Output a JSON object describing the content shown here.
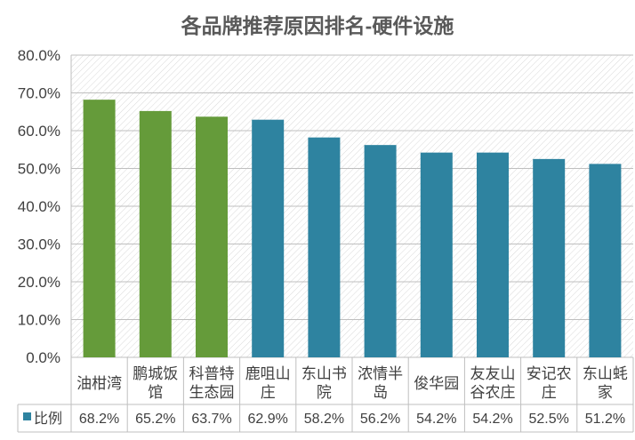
{
  "chart_data": {
    "type": "bar",
    "title": "各品牌推荐原因排名-硬件设施",
    "categories": [
      "油柑湾",
      "鹏城饭馆",
      "科普特生态园",
      "鹿咀山庄",
      "东山书院",
      "浓情半岛",
      "俊华园",
      "友友山谷农庄",
      "安记农庄",
      "东山蚝家"
    ],
    "category_lines": [
      [
        "油柑湾"
      ],
      [
        "鹏城饭",
        "馆"
      ],
      [
        "科普特",
        "生态园"
      ],
      [
        "鹿咀山",
        "庄"
      ],
      [
        "东山书",
        "院"
      ],
      [
        "浓情半",
        "岛"
      ],
      [
        "俊华园"
      ],
      [
        "友友山",
        "谷农庄"
      ],
      [
        "安记农",
        "庄"
      ],
      [
        "东山蚝",
        "家"
      ]
    ],
    "series": [
      {
        "name": "比例",
        "values": [
          68.2,
          65.2,
          63.7,
          62.9,
          58.2,
          56.2,
          54.2,
          54.2,
          52.5,
          51.2
        ]
      }
    ],
    "value_labels": [
      "68.2%",
      "65.2%",
      "63.7%",
      "62.9%",
      "58.2%",
      "56.2%",
      "54.2%",
      "54.2%",
      "52.5%",
      "51.2%"
    ],
    "y_ticks": [
      "0.0%",
      "10.0%",
      "20.0%",
      "30.0%",
      "40.0%",
      "50.0%",
      "60.0%",
      "70.0%",
      "80.0%"
    ],
    "ylim": [
      0,
      80
    ],
    "grid": true,
    "legend_position": "bottom-left (data table)",
    "colors": {
      "highlight": "#659B3A",
      "default": "#2E83A0"
    },
    "highlight_count": 3
  }
}
